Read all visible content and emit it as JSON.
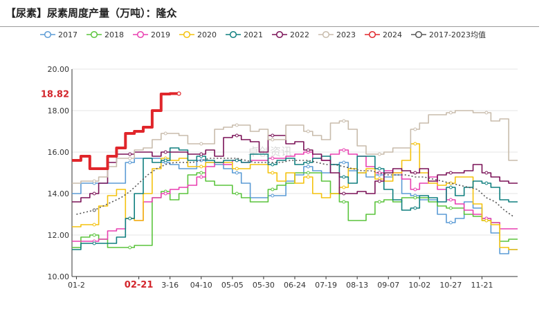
{
  "title": "【尿素】尿素周度产量（万吨）：隆众",
  "colors": {
    "2017": "#5b9bd5",
    "2018": "#5ac43c",
    "2019": "#e93fb0",
    "2020": "#f4c20d",
    "2021": "#0f7f7f",
    "2022": "#7a1157",
    "2023": "#c8bcac",
    "2024": "#e0262b",
    "avg": "#555555"
  },
  "chart_data": {
    "type": "line",
    "title": "【尿素】尿素周度产量（万吨）：隆众",
    "ylim": [
      10,
      20
    ],
    "yticks": [
      "10.00",
      "12.00",
      "14.00",
      "16.00",
      "18.00",
      "20.00"
    ],
    "xticks": [
      "01-2",
      "02-21",
      "3-16",
      "04-10",
      "05-05",
      "05-30",
      "06-24",
      "07-19",
      "08-13",
      "09-07",
      "10-02",
      "10-27",
      "11-21"
    ],
    "xtick_weeks": [
      0,
      7,
      10.5,
      14,
      17.5,
      21,
      24.5,
      28,
      31.5,
      35,
      38.5,
      42,
      45.5
    ],
    "highlight_xtick": "02-21",
    "latest_label": "18.82",
    "grid": true,
    "legend_position": "top",
    "series": [
      {
        "name": "2017",
        "key": "2017",
        "values": [
          14.0,
          14.5,
          14.5,
          14.5,
          14.5,
          14.5,
          15.5,
          15.7,
          15.7,
          15.7,
          15.5,
          15.4,
          15.2,
          15.2,
          15.6,
          15.5,
          15.4,
          15.2,
          15.0,
          14.5,
          13.8,
          13.8,
          13.9,
          13.9,
          14.6,
          14.9,
          15.3,
          15.1,
          15.0,
          15.4,
          15.5,
          15.1,
          15.0,
          14.8,
          14.9,
          14.8,
          14.9,
          14.0,
          13.9,
          13.7,
          13.7,
          13.0,
          12.6,
          12.8,
          13.6,
          13.3,
          12.8,
          12.1,
          11.1,
          11.3
        ]
      },
      {
        "name": "2018",
        "key": "2018",
        "values": [
          11.4,
          11.9,
          12.0,
          11.8,
          11.4,
          11.4,
          11.4,
          11.5,
          11.5,
          13.8,
          14.1,
          13.7,
          14.0,
          14.9,
          15.0,
          14.6,
          14.4,
          14.4,
          14.0,
          13.8,
          13.6,
          13.6,
          14.2,
          14.4,
          14.5,
          15.0,
          15.0,
          15.0,
          14.6,
          14.0,
          13.6,
          12.7,
          12.7,
          13.0,
          13.6,
          13.7,
          13.6,
          13.8,
          13.8,
          13.8,
          13.6,
          13.4,
          13.3,
          13.3,
          13.0,
          12.9,
          12.7,
          12.6,
          11.7,
          11.8
        ]
      },
      {
        "name": "2019",
        "key": "2019",
        "values": [
          11.7,
          11.7,
          11.7,
          11.8,
          12.2,
          12.3,
          12.8,
          12.7,
          13.6,
          13.8,
          14.0,
          14.2,
          14.3,
          14.4,
          14.8,
          15.3,
          15.5,
          15.4,
          15.6,
          15.5,
          15.6,
          15.6,
          15.7,
          15.7,
          15.8,
          15.9,
          16.0,
          15.7,
          15.6,
          15.9,
          16.1,
          15.9,
          15.8,
          15.3,
          15.0,
          15.1,
          15.0,
          14.7,
          14.2,
          14.5,
          14.8,
          14.2,
          13.7,
          13.5,
          13.2,
          13.0,
          12.8,
          12.6,
          12.3,
          12.3
        ]
      },
      {
        "name": "2020",
        "key": "2020",
        "values": [
          12.4,
          12.5,
          12.5,
          13.4,
          13.9,
          14.2,
          12.8,
          12.7,
          14.0,
          15.2,
          15.7,
          15.6,
          15.7,
          15.3,
          15.3,
          15.5,
          15.5,
          15.5,
          15.2,
          15.2,
          15.4,
          15.4,
          15.0,
          14.6,
          15.0,
          14.5,
          14.8,
          14.0,
          13.8,
          14.0,
          14.3,
          15.2,
          15.0,
          15.2,
          14.7,
          14.6,
          15.0,
          15.6,
          16.4,
          15.0,
          14.5,
          14.4,
          14.5,
          14.8,
          14.8,
          13.5,
          12.7,
          12.5,
          11.4,
          11.3
        ]
      },
      {
        "name": "2021",
        "key": "2021",
        "values": [
          11.3,
          11.6,
          11.6,
          11.6,
          11.6,
          11.9,
          12.8,
          14.0,
          15.7,
          15.5,
          15.6,
          16.2,
          16.1,
          15.6,
          15.8,
          15.6,
          15.5,
          15.6,
          15.6,
          15.5,
          15.9,
          15.9,
          15.4,
          15.6,
          15.7,
          15.4,
          15.5,
          15.7,
          15.8,
          15.4,
          14.8,
          14.5,
          15.8,
          15.8,
          15.2,
          14.2,
          13.7,
          13.2,
          13.3,
          13.9,
          13.8,
          13.6,
          14.3,
          13.9,
          14.3,
          14.6,
          14.5,
          14.3,
          13.7,
          13.6
        ]
      },
      {
        "name": "2022",
        "key": "2022",
        "values": [
          13.6,
          13.8,
          14.0,
          14.5,
          15.5,
          15.9,
          15.9,
          16.0,
          16.0,
          15.8,
          16.0,
          16.0,
          16.0,
          15.9,
          15.9,
          16.1,
          15.8,
          16.7,
          16.8,
          16.6,
          16.5,
          16.0,
          16.8,
          16.8,
          16.4,
          16.5,
          16.1,
          15.9,
          15.6,
          15.0,
          14.0,
          14.0,
          14.1,
          14.0,
          14.6,
          15.0,
          15.2,
          15.1,
          15.0,
          15.2,
          14.6,
          14.9,
          15.0,
          15.0,
          15.1,
          15.4,
          15.0,
          14.8,
          14.6,
          14.5
        ]
      },
      {
        "name": "2023",
        "key": "2023",
        "values": [
          14.5,
          14.6,
          14.6,
          14.8,
          15.3,
          15.7,
          15.7,
          16.1,
          16.2,
          16.6,
          16.9,
          16.9,
          16.8,
          16.4,
          16.4,
          16.4,
          17.1,
          17.2,
          17.3,
          17.3,
          17.0,
          17.1,
          16.6,
          16.6,
          17.3,
          17.3,
          17.0,
          16.8,
          16.6,
          17.4,
          17.5,
          17.1,
          16.3,
          15.9,
          15.9,
          16.0,
          16.2,
          16.2,
          17.1,
          17.4,
          17.8,
          17.8,
          17.9,
          18.0,
          18.0,
          17.9,
          17.9,
          17.5,
          17.6,
          15.6
        ]
      },
      {
        "name": "2024",
        "key": "2024",
        "values": [
          15.6,
          15.8,
          15.2,
          15.2,
          15.8,
          16.2,
          16.9,
          17.0,
          17.2,
          18.0,
          18.8,
          18.82
        ]
      },
      {
        "name": "2017-2023均值",
        "key": "avg",
        "dashed": true,
        "values": [
          13.0,
          13.1,
          13.2,
          13.4,
          13.6,
          13.8,
          14.1,
          14.5,
          14.9,
          15.2,
          15.4,
          15.5,
          15.5,
          15.5,
          15.6,
          15.7,
          15.7,
          15.7,
          15.7,
          15.6,
          15.5,
          15.5,
          15.5,
          15.5,
          15.6,
          15.6,
          15.6,
          15.5,
          15.4,
          15.4,
          15.3,
          15.2,
          15.1,
          15.1,
          15.0,
          14.9,
          14.9,
          14.9,
          14.8,
          14.8,
          14.7,
          14.6,
          14.5,
          14.4,
          14.3,
          14.2,
          13.8,
          13.6,
          13.2,
          12.9
        ]
      }
    ]
  }
}
